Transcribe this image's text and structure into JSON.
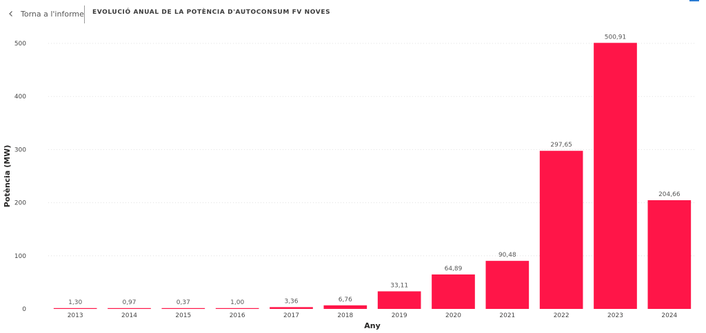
{
  "header": {
    "back_label": "Torna a l'informe",
    "title": "EVOLUCIÓ ANUAL DE LA POTÈNCIA D'AUTOCONSUM FV NOVES",
    "icon": "chevron-left-icon"
  },
  "colors": {
    "bar": "#FF1548",
    "grid": "#E0E0E0"
  },
  "chart_data": {
    "type": "bar",
    "categories": [
      "2013",
      "2014",
      "2015",
      "2016",
      "2017",
      "2018",
      "2019",
      "2020",
      "2021",
      "2022",
      "2023",
      "2024"
    ],
    "values": [
      1.3,
      0.97,
      0.37,
      1.0,
      3.36,
      6.76,
      33.11,
      64.89,
      90.48,
      297.65,
      500.91,
      204.66
    ],
    "data_labels": [
      "1,30",
      "0,97",
      "0,37",
      "1,00",
      "3,36",
      "6,76",
      "33,11",
      "64,89",
      "90,48",
      "297,65",
      "500,91",
      "204,66"
    ],
    "xlabel": "Any",
    "ylabel": "Potència (MW)",
    "ylim": [
      0,
      500
    ],
    "yticks": [
      0,
      100,
      200,
      300,
      400,
      500
    ],
    "grid": true
  }
}
